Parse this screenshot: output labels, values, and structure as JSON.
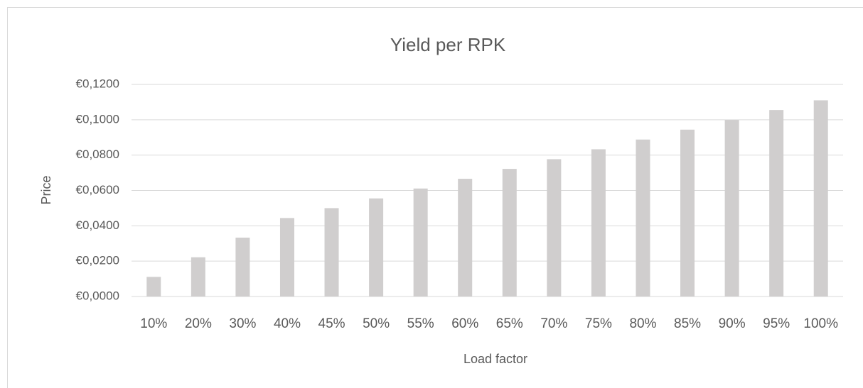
{
  "chart_data": {
    "type": "bar",
    "title": "Yield per RPK",
    "x_label": "Load factor",
    "y_label": "Price",
    "categories": [
      "10%",
      "20%",
      "30%",
      "40%",
      "45%",
      "50%",
      "55%",
      "60%",
      "65%",
      "70%",
      "75%",
      "80%",
      "85%",
      "90%",
      "95%",
      "100%"
    ],
    "values": [
      0.0111,
      0.0222,
      0.0333,
      0.0444,
      0.05,
      0.0555,
      0.0611,
      0.0666,
      0.0722,
      0.0777,
      0.0833,
      0.0888,
      0.0944,
      0.0999,
      0.1055,
      0.111
    ],
    "color": "#d0cece",
    "ylim": [
      0,
      0.12
    ],
    "yticks": [
      {
        "value": 0,
        "label": "€0,0000"
      },
      {
        "value": 0.02,
        "label": "€0,0200"
      },
      {
        "value": 0.04,
        "label": "€0,0400"
      },
      {
        "value": 0.06,
        "label": "€0,0600"
      },
      {
        "value": 0.08,
        "label": "€0,0800"
      },
      {
        "value": 0.1,
        "label": "€0,1000"
      },
      {
        "value": 0.12,
        "label": "€0,1200"
      }
    ],
    "grid": true
  }
}
